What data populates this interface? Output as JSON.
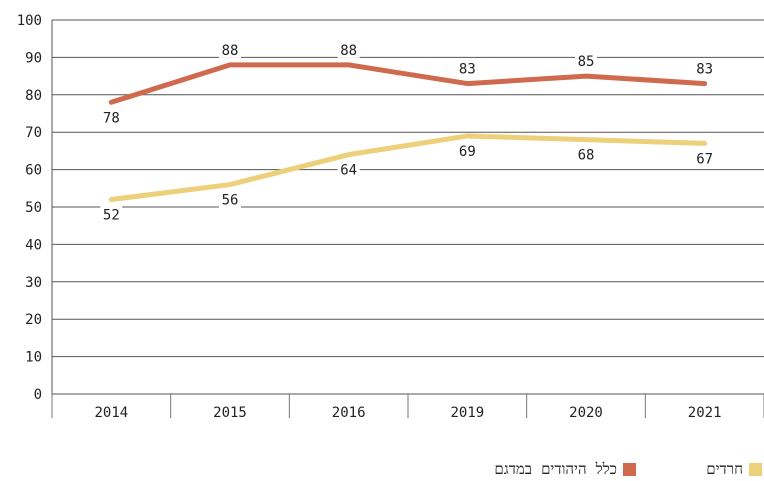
{
  "chart_data": {
    "type": "line",
    "categories": [
      "2014",
      "2015",
      "2016",
      "2019",
      "2020",
      "2021"
    ],
    "ylim": [
      0,
      100
    ],
    "yticks": [
      0,
      10,
      20,
      30,
      40,
      50,
      60,
      70,
      80,
      90,
      100
    ],
    "grid": true,
    "legend_position": "bottom",
    "series": [
      {
        "name": "כלל היהודים במדגם",
        "color": "#d06a4f",
        "values": [
          78,
          88,
          88,
          83,
          85,
          83
        ],
        "labels": [
          "78",
          "88",
          "88",
          "83",
          "85",
          "83"
        ]
      },
      {
        "name": "חרדים",
        "color": "#ecd07a",
        "values": [
          52,
          56,
          64,
          69,
          68,
          67
        ],
        "labels": [
          "52",
          "56",
          "64",
          "69",
          "68",
          "67"
        ]
      }
    ]
  }
}
